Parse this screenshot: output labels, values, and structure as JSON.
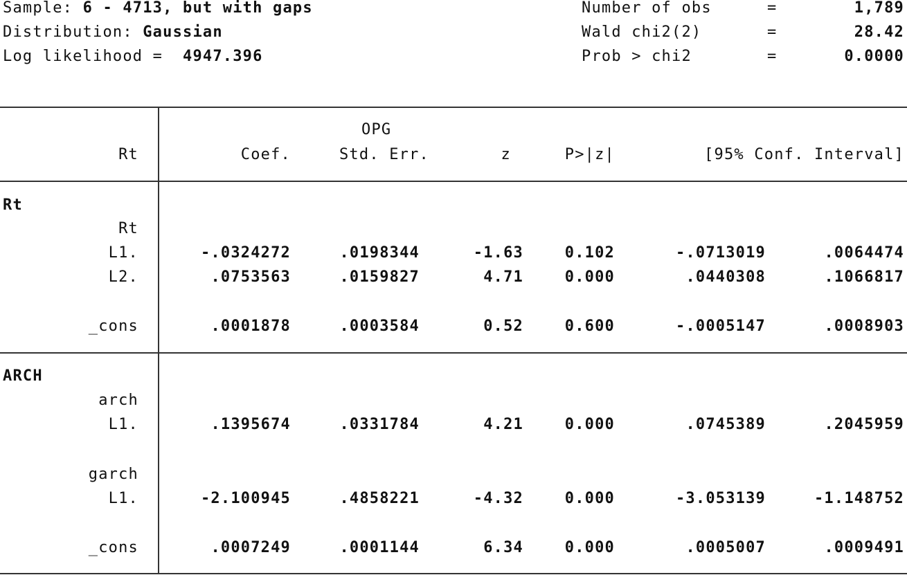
{
  "header": {
    "left": [
      {
        "label": "Sample: ",
        "value": "6 - 4713, but with gaps"
      },
      {
        "label": "Distribution: ",
        "value": "Gaussian"
      },
      {
        "label": "Log likelihood =  ",
        "value": "4947.396"
      }
    ],
    "right": [
      {
        "label": "Number of obs",
        "eq": "=",
        "value": "1,789"
      },
      {
        "label": "Wald chi2(2)",
        "eq": "=",
        "value": "28.42"
      },
      {
        "label": "Prob > chi2",
        "eq": "=",
        "value": "0.0000"
      }
    ]
  },
  "table": {
    "header_top": "OPG",
    "depvar": "Rt",
    "columns": [
      "Coef.",
      "Std. Err.",
      "z",
      "P>|z|",
      "[95% Conf. Interval]"
    ],
    "eq1_name": "Rt",
    "eq1_var": "Rt",
    "rows_eq1": [
      {
        "label": "L1.",
        "coef": "-.0324272",
        "se": ".0198344",
        "z": "-1.63",
        "p": "0.102",
        "lo": "-.0713019",
        "hi": ".0064474"
      },
      {
        "label": "L2.",
        "coef": ".0753563",
        "se": ".0159827",
        "z": "4.71",
        "p": "0.000",
        "lo": ".0440308",
        "hi": ".1066817"
      },
      {
        "label": "_cons",
        "coef": ".0001878",
        "se": ".0003584",
        "z": "0.52",
        "p": "0.600",
        "lo": "-.0005147",
        "hi": ".0008903"
      }
    ],
    "eq2_name": "ARCH",
    "arch_var": "arch",
    "arch_row": {
      "label": "L1.",
      "coef": ".1395674",
      "se": ".0331784",
      "z": "4.21",
      "p": "0.000",
      "lo": ".0745389",
      "hi": ".2045959"
    },
    "garch_var": "garch",
    "garch_row": {
      "label": "L1.",
      "coef": "-2.100945",
      "se": ".4858221",
      "z": "-4.32",
      "p": "0.000",
      "lo": "-3.053139",
      "hi": "-1.148752"
    },
    "cons2_row": {
      "label": "_cons",
      "coef": ".0007249",
      "se": ".0001144",
      "z": "6.34",
      "p": "0.000",
      "lo": ".0005007",
      "hi": ".0009491"
    }
  }
}
